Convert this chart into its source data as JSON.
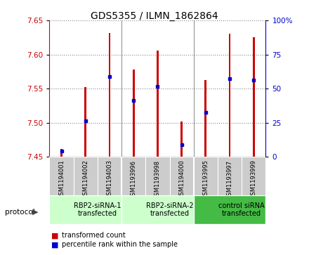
{
  "title": "GDS5355 / ILMN_1862864",
  "samples": [
    "GSM1194001",
    "GSM1194002",
    "GSM1194003",
    "GSM1193996",
    "GSM1193998",
    "GSM1194000",
    "GSM1193995",
    "GSM1193997",
    "GSM1193999"
  ],
  "bar_bottom": 7.45,
  "bar_tops": [
    7.462,
    7.552,
    7.632,
    7.578,
    7.606,
    7.502,
    7.562,
    7.63,
    7.625
  ],
  "percentile_values": [
    7.459,
    7.503,
    7.568,
    7.533,
    7.553,
    7.468,
    7.515,
    7.565,
    7.563
  ],
  "ylim": [
    7.45,
    7.65
  ],
  "y2lim": [
    0,
    100
  ],
  "yticks": [
    7.45,
    7.5,
    7.55,
    7.6,
    7.65
  ],
  "y2ticks": [
    0,
    25,
    50,
    75,
    100
  ],
  "bar_color": "#cc0000",
  "percentile_color": "#0000cc",
  "bar_width": 0.08,
  "groups": [
    {
      "label": "RBP2-siRNA-1\ntransfected",
      "start": 0,
      "end": 3,
      "color": "#ccffcc"
    },
    {
      "label": "RBP2-siRNA-2\ntransfected",
      "start": 3,
      "end": 6,
      "color": "#ccffcc"
    },
    {
      "label": "control siRNA\ntransfected",
      "start": 6,
      "end": 9,
      "color": "#44bb44"
    }
  ],
  "protocol_label": "protocol",
  "legend_items": [
    {
      "color": "#cc0000",
      "label": "transformed count"
    },
    {
      "color": "#0000cc",
      "label": "percentile rank within the sample"
    }
  ],
  "background_color": "#ffffff",
  "plot_bg_color": "#ffffff",
  "sample_area_color": "#cccccc",
  "title_fontsize": 10,
  "tick_fontsize": 7.5,
  "label_fontsize": 7
}
